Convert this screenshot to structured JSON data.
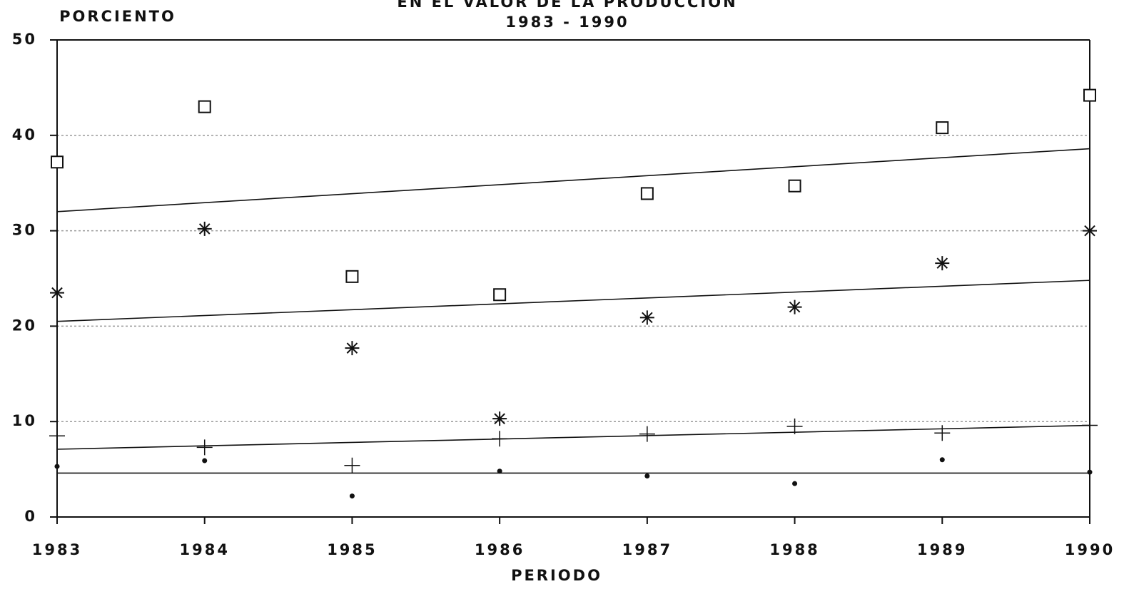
{
  "chart_data": {
    "type": "scatter",
    "title": "EN EL VALOR DE LA PRODUCCION",
    "subtitle": "1983 - 1990",
    "y_label": "PORCIENTO",
    "x_label": "PERIODO",
    "x": [
      1983,
      1984,
      1985,
      1986,
      1987,
      1988,
      1989,
      1990
    ],
    "xlim": [
      1983,
      1990
    ],
    "xticks": [
      1983,
      1984,
      1985,
      1986,
      1987,
      1988,
      1989,
      1990
    ],
    "ylim": [
      0,
      50
    ],
    "yticks": [
      0,
      10,
      20,
      30,
      40,
      50
    ],
    "grid": true,
    "series": [
      {
        "marker": "square",
        "color": "#111111",
        "values": [
          37.2,
          43.0,
          25.2,
          23.3,
          33.9,
          34.7,
          40.8,
          44.2
        ],
        "trend": [
          32.0,
          38.6
        ]
      },
      {
        "marker": "asterisk",
        "color": "#111111",
        "values": [
          23.5,
          30.2,
          17.7,
          10.3,
          20.9,
          22.0,
          26.6,
          30.0
        ],
        "trend": [
          20.5,
          24.8
        ]
      },
      {
        "marker": "plus",
        "color": "#111111",
        "values": [
          8.5,
          7.3,
          5.4,
          8.2,
          8.7,
          9.5,
          8.8,
          9.6
        ],
        "trend": [
          7.1,
          9.6
        ]
      },
      {
        "marker": "dot",
        "color": "#111111",
        "values": [
          5.3,
          5.9,
          2.2,
          4.8,
          4.3,
          3.5,
          6.0,
          4.7
        ],
        "trend": [
          4.6,
          4.6
        ]
      }
    ]
  }
}
